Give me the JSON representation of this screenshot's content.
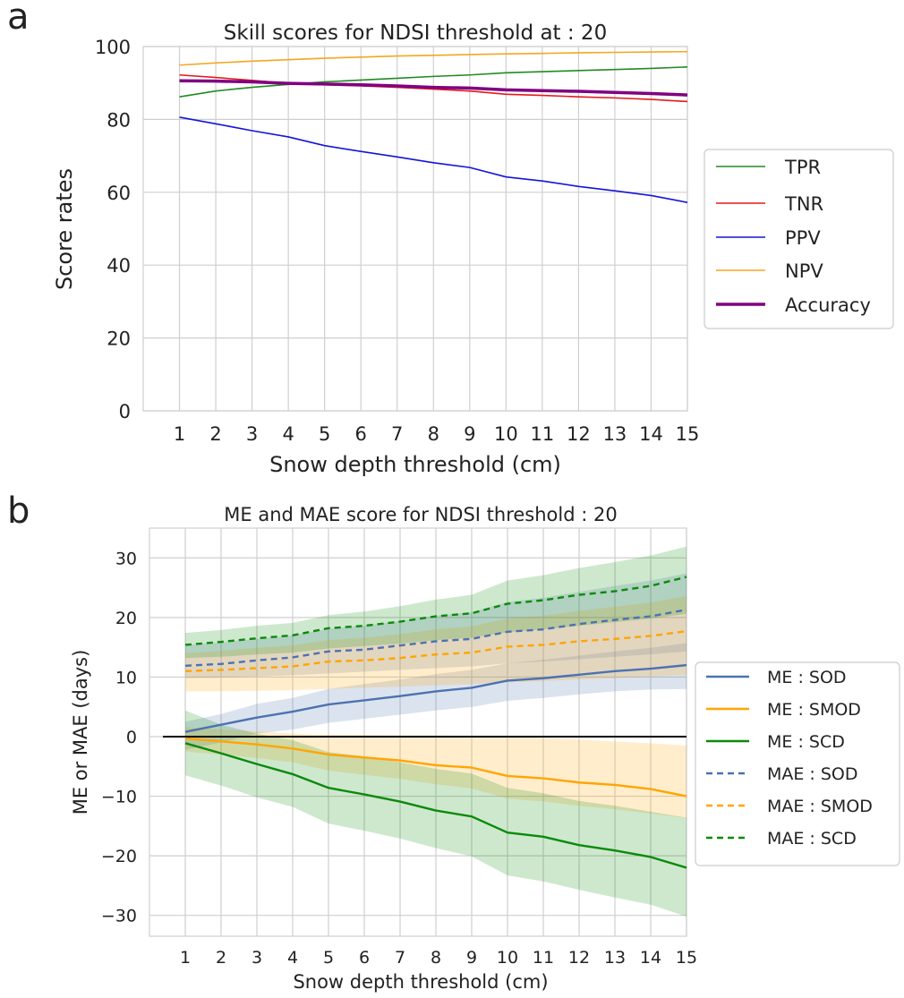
{
  "panels": {
    "a": "a",
    "b": "b"
  },
  "colors": {
    "TPR": "#228b22",
    "TNR": "#e41a1c",
    "PPV": "#1515d6",
    "NPV": "#f5a623",
    "Accuracy": "#800080",
    "SOD": "#4c72b0",
    "SMOD": "#ffa500",
    "SCD": "#0a8a0a",
    "grid": "#cfcfcf",
    "zero_line": "#000000"
  },
  "chart_data": [
    {
      "type": "line",
      "title": "Skill scores for NDSI threshold at : 20",
      "xlabel": "Snow depth threshold (cm)",
      "ylabel": "Score rates",
      "x": [
        1,
        2,
        3,
        4,
        5,
        6,
        7,
        8,
        9,
        10,
        11,
        12,
        13,
        14,
        15
      ],
      "xlim": [
        0,
        15
      ],
      "ylim": [
        0,
        100
      ],
      "yticks": [
        0,
        20,
        40,
        60,
        80,
        100
      ],
      "grid": true,
      "legend_position": "right",
      "series": [
        {
          "name": "TPR",
          "values": [
            86.2,
            87.8,
            88.8,
            89.6,
            90.3,
            90.8,
            91.3,
            91.8,
            92.2,
            92.8,
            93.1,
            93.4,
            93.7,
            94.0,
            94.4
          ]
        },
        {
          "name": "TNR",
          "values": [
            92.2,
            91.5,
            90.7,
            89.9,
            89.5,
            89.2,
            88.8,
            88.3,
            87.8,
            86.9,
            86.6,
            86.2,
            85.9,
            85.5,
            84.9
          ]
        },
        {
          "name": "PPV",
          "values": [
            80.6,
            78.8,
            76.9,
            75.2,
            72.8,
            71.2,
            69.7,
            68.1,
            66.8,
            64.2,
            63.1,
            61.6,
            60.4,
            59.1,
            57.2
          ]
        },
        {
          "name": "NPV",
          "values": [
            94.9,
            95.5,
            96.0,
            96.4,
            96.8,
            97.1,
            97.4,
            97.6,
            97.8,
            98.0,
            98.1,
            98.3,
            98.4,
            98.5,
            98.6
          ]
        },
        {
          "name": "Accuracy",
          "values": [
            90.6,
            90.5,
            90.3,
            89.9,
            89.7,
            89.5,
            89.2,
            88.8,
            88.6,
            88.1,
            87.9,
            87.7,
            87.4,
            87.1,
            86.7
          ]
        }
      ]
    },
    {
      "type": "line",
      "title": "ME and MAE score for NDSI threshold : 20",
      "xlabel": "Snow depth threshold (cm)",
      "ylabel": "ME or MAE (days)",
      "x": [
        1,
        2,
        3,
        4,
        5,
        6,
        7,
        8,
        9,
        10,
        11,
        12,
        13,
        14,
        15
      ],
      "xlim": [
        0,
        15
      ],
      "ylim": [
        -33.5,
        35
      ],
      "yticks": [
        -30,
        -20,
        -10,
        0,
        10,
        20,
        30
      ],
      "grid": true,
      "zero_line": 0,
      "legend_position": "right",
      "series": [
        {
          "name": "ME : SOD",
          "style": "solid",
          "color_key": "SOD",
          "values": [
            0.8,
            2.0,
            3.2,
            4.2,
            5.4,
            6.1,
            6.8,
            7.6,
            8.2,
            9.4,
            9.8,
            10.4,
            11.0,
            11.4,
            12.0
          ],
          "band_lower": [
            -2.2,
            -1.0,
            0.5,
            1.2,
            2.3,
            3.0,
            3.7,
            4.4,
            5.0,
            6.0,
            6.5,
            7.1,
            7.6,
            7.9,
            8.0
          ],
          "band_upper": [
            2.5,
            3.8,
            5.5,
            6.5,
            8.0,
            8.8,
            9.6,
            10.5,
            11.2,
            12.3,
            12.9,
            13.6,
            14.3,
            14.9,
            15.7
          ]
        },
        {
          "name": "ME : SMOD",
          "style": "solid",
          "color_key": "SMOD",
          "values": [
            -0.3,
            -0.8,
            -1.3,
            -2.0,
            -3.0,
            -3.5,
            -4.0,
            -4.8,
            -5.2,
            -6.6,
            -7.0,
            -7.7,
            -8.1,
            -8.8,
            -10.0
          ],
          "band_lower": [
            -2.5,
            -3.0,
            -3.6,
            -4.3,
            -5.7,
            -6.4,
            -7.1,
            -8.0,
            -8.7,
            -10.4,
            -10.9,
            -11.6,
            -12.2,
            -12.9,
            -13.7
          ],
          "band_upper": [
            1.6,
            1.2,
            0.9,
            0.5,
            0.3,
            0.3,
            0.2,
            0.2,
            0.1,
            0.0,
            -0.2,
            -0.5,
            -0.8,
            -1.1,
            -1.5
          ]
        },
        {
          "name": "ME : SCD",
          "style": "solid",
          "color_key": "SCD",
          "values": [
            -1.1,
            -2.8,
            -4.6,
            -6.3,
            -8.6,
            -9.7,
            -10.9,
            -12.4,
            -13.4,
            -16.1,
            -16.8,
            -18.2,
            -19.1,
            -20.2,
            -22.0
          ],
          "band_lower": [
            -6.5,
            -8.2,
            -10.2,
            -11.8,
            -14.6,
            -15.8,
            -17.1,
            -18.7,
            -20.1,
            -23.3,
            -24.3,
            -25.7,
            -27.0,
            -28.2,
            -30.2
          ],
          "band_upper": [
            4.4,
            2.0,
            0.5,
            -0.6,
            -2.6,
            -3.3,
            -4.3,
            -5.4,
            -6.2,
            -8.6,
            -9.5,
            -10.8,
            -11.6,
            -12.6,
            -13.6
          ]
        },
        {
          "name": "MAE : SOD",
          "style": "dashed",
          "color_key": "SOD",
          "values": [
            11.9,
            12.2,
            12.8,
            13.3,
            14.3,
            14.6,
            15.3,
            16.0,
            16.4,
            17.6,
            18.0,
            18.9,
            19.6,
            20.2,
            21.3
          ],
          "band_lower": [
            9.8,
            9.9,
            10.1,
            10.3,
            10.6,
            10.9,
            11.2,
            11.5,
            11.8,
            12.3,
            12.6,
            13.0,
            13.4,
            13.8,
            14.3
          ],
          "band_upper": [
            15.4,
            15.8,
            16.4,
            17.0,
            18.1,
            18.6,
            19.4,
            20.3,
            20.9,
            22.6,
            23.3,
            24.3,
            25.3,
            26.2,
            27.4
          ]
        },
        {
          "name": "MAE : SMOD",
          "style": "dashed",
          "color_key": "SMOD",
          "values": [
            11.0,
            11.2,
            11.5,
            11.8,
            12.6,
            12.8,
            13.2,
            13.8,
            14.1,
            15.1,
            15.4,
            16.0,
            16.4,
            16.9,
            17.7
          ],
          "band_lower": [
            7.6,
            7.6,
            7.7,
            7.8,
            8.0,
            8.2,
            8.4,
            8.6,
            8.8,
            9.1,
            9.3,
            9.6,
            9.8,
            10.1,
            10.3
          ],
          "band_upper": [
            14.0,
            14.4,
            14.9,
            15.3,
            16.2,
            16.6,
            17.2,
            18.0,
            18.5,
            19.8,
            20.3,
            21.1,
            21.8,
            22.5,
            23.6
          ]
        },
        {
          "name": "MAE : SCD",
          "style": "dashed",
          "color_key": "SCD",
          "values": [
            15.4,
            15.9,
            16.5,
            17.0,
            18.2,
            18.6,
            19.3,
            20.2,
            20.7,
            22.3,
            22.9,
            23.8,
            24.4,
            25.3,
            26.8
          ],
          "band_lower": [
            13.2,
            13.4,
            13.8,
            14.1,
            14.8,
            15.2,
            15.6,
            16.2,
            16.6,
            17.5,
            18.0,
            18.6,
            19.2,
            19.8,
            20.6
          ],
          "band_upper": [
            17.4,
            17.9,
            18.6,
            19.1,
            20.4,
            21.0,
            21.9,
            23.0,
            23.8,
            26.2,
            27.1,
            28.3,
            29.3,
            30.4,
            31.9
          ]
        }
      ]
    }
  ]
}
